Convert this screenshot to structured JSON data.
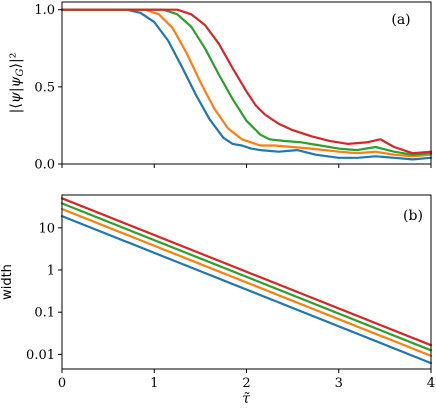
{
  "colors": {
    "blue": "#1f77b4",
    "orange": "#ff7f0e",
    "green": "#2ca02c",
    "red": "#d62728"
  },
  "chart_data": [
    {
      "panel_label": "(a)",
      "type": "line",
      "ylabel": "|⟨ψ|ψG⟩|²",
      "ylabel_parts": {
        "open": "|⟨",
        "psi": "ψ",
        "bar": "|",
        "psiG": "ψ",
        "sub": "G",
        "close": "⟩|²"
      },
      "xlim": [
        0,
        4
      ],
      "ylim": [
        0,
        1.05
      ],
      "yticks": [
        0.0,
        0.5,
        1.0
      ],
      "ytick_labels": [
        "0.0",
        "0.5",
        "1.0"
      ],
      "series": [
        {
          "color": "blue",
          "x": [
            0,
            0.7,
            0.85,
            1.0,
            1.15,
            1.3,
            1.45,
            1.6,
            1.75,
            1.85,
            1.95,
            2.05,
            2.15,
            2.35,
            2.55,
            2.75,
            3.0,
            3.2,
            3.4,
            3.6,
            3.8,
            4.0
          ],
          "y": [
            1.0,
            1.0,
            0.98,
            0.92,
            0.8,
            0.63,
            0.45,
            0.29,
            0.17,
            0.13,
            0.12,
            0.1,
            0.09,
            0.08,
            0.09,
            0.06,
            0.04,
            0.04,
            0.05,
            0.04,
            0.03,
            0.04
          ]
        },
        {
          "color": "orange",
          "x": [
            0,
            0.9,
            1.05,
            1.2,
            1.35,
            1.5,
            1.65,
            1.8,
            1.95,
            2.05,
            2.15,
            2.3,
            2.5,
            2.7,
            3.0,
            3.2,
            3.4,
            3.6,
            3.8,
            4.0
          ],
          "y": [
            1.0,
            1.0,
            0.97,
            0.88,
            0.72,
            0.53,
            0.36,
            0.23,
            0.16,
            0.14,
            0.12,
            0.12,
            0.11,
            0.1,
            0.08,
            0.07,
            0.08,
            0.06,
            0.05,
            0.06
          ]
        },
        {
          "color": "green",
          "x": [
            0,
            1.1,
            1.25,
            1.4,
            1.55,
            1.7,
            1.85,
            2.0,
            2.15,
            2.25,
            2.4,
            2.6,
            2.8,
            3.0,
            3.2,
            3.4,
            3.6,
            3.8,
            4.0
          ],
          "y": [
            1.0,
            1.0,
            0.97,
            0.89,
            0.75,
            0.58,
            0.42,
            0.28,
            0.19,
            0.16,
            0.15,
            0.14,
            0.12,
            0.1,
            0.09,
            0.11,
            0.08,
            0.06,
            0.07
          ]
        },
        {
          "color": "red",
          "x": [
            0,
            1.25,
            1.4,
            1.55,
            1.7,
            1.85,
            2.0,
            2.1,
            2.2,
            2.35,
            2.5,
            2.7,
            2.9,
            3.1,
            3.3,
            3.45,
            3.6,
            3.8,
            4.0
          ],
          "y": [
            1.0,
            1.0,
            0.97,
            0.9,
            0.78,
            0.62,
            0.47,
            0.38,
            0.32,
            0.26,
            0.22,
            0.18,
            0.15,
            0.13,
            0.14,
            0.16,
            0.11,
            0.07,
            0.08
          ]
        }
      ]
    },
    {
      "panel_label": "(b)",
      "type": "line",
      "ylabel": "width",
      "xlabel": "τ̃",
      "yscale": "log",
      "xlim": [
        0,
        4
      ],
      "ylim": [
        0.0045,
        60
      ],
      "xticks": [
        0,
        1,
        2,
        3,
        4
      ],
      "xtick_labels": [
        "0",
        "1",
        "2",
        "3",
        "4"
      ],
      "yticks": [
        0.01,
        0.1,
        1,
        10
      ],
      "ytick_labels": [
        "0.01",
        "0.1",
        "1",
        "10"
      ],
      "series": [
        {
          "color": "blue",
          "x": [
            0,
            4
          ],
          "y": [
            19,
            0.0062
          ]
        },
        {
          "color": "orange",
          "x": [
            0,
            4
          ],
          "y": [
            28,
            0.0092
          ]
        },
        {
          "color": "green",
          "x": [
            0,
            4
          ],
          "y": [
            38,
            0.0125
          ]
        },
        {
          "color": "red",
          "x": [
            0,
            4
          ],
          "y": [
            50,
            0.0165
          ]
        }
      ]
    }
  ]
}
